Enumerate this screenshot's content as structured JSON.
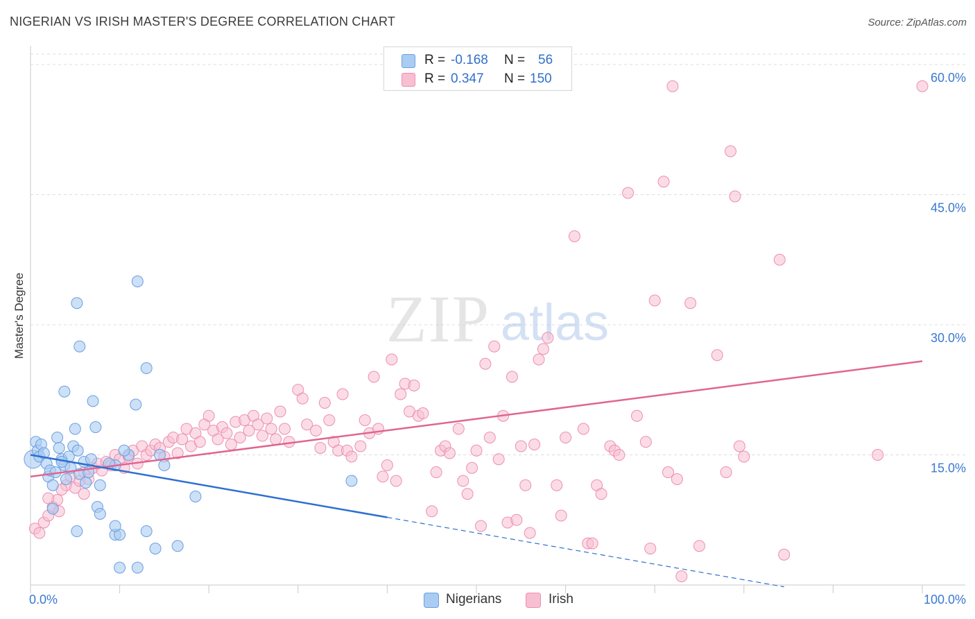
{
  "title": "NIGERIAN VS IRISH MASTER'S DEGREE CORRELATION CHART",
  "source": "Source: ZipAtlas.com",
  "watermark": {
    "zip": "ZIP",
    "atlas": "atlas"
  },
  "legend_top": {
    "rows": [
      {
        "r_label": "R =",
        "r_value": "-0.168",
        "n_label": "N =",
        "n_value": "56"
      },
      {
        "r_label": "R =",
        "r_value": "0.347",
        "n_label": "N =",
        "n_value": "150"
      }
    ]
  },
  "legend_bottom": {
    "items": [
      "Nigerians",
      "Irish"
    ]
  },
  "colors": {
    "nigerian_fill": "#aaccf2",
    "nigerian_stroke": "#6a9fe0",
    "nigerian_line": "#2d6fd0",
    "irish_fill": "#f7bfd1",
    "irish_stroke": "#ec8fb0",
    "irish_line": "#e06592",
    "tick_label": "#3a78d0",
    "grid": "#dcdcdc"
  },
  "chart_data": {
    "type": "scatter",
    "title": "NIGERIAN VS IRISH MASTER'S DEGREE CORRELATION CHART",
    "xlabel": "",
    "ylabel": "Master's Degree",
    "xlim": [
      0,
      100
    ],
    "ylim": [
      0,
      62
    ],
    "x_tick_labels": [
      "0.0%",
      "100.0%"
    ],
    "y_ticks": [
      15,
      30,
      45,
      60
    ],
    "y_tick_labels": [
      "15.0%",
      "30.0%",
      "45.0%",
      "60.0%"
    ],
    "grid": "horizontal dashed",
    "legend_position": "top-center",
    "series": [
      {
        "name": "Nigerians",
        "r": -0.168,
        "n": 56,
        "trend": {
          "x0": 0,
          "y0": 15.0,
          "x1": 40,
          "y1": 7.8,
          "dashed_to_x": 100,
          "dashed_to_y": -3.2
        },
        "points": [
          [
            0.3,
            14.5
          ],
          [
            0.6,
            16.5
          ],
          [
            0.8,
            15.5
          ],
          [
            1.0,
            14.8
          ],
          [
            1.2,
            16.2
          ],
          [
            1.5,
            15.2
          ],
          [
            1.8,
            14.0
          ],
          [
            2.0,
            12.5
          ],
          [
            2.2,
            13.2
          ],
          [
            2.5,
            11.5
          ],
          [
            2.8,
            13.0
          ],
          [
            3.0,
            17.0
          ],
          [
            3.2,
            15.8
          ],
          [
            3.5,
            14.5
          ],
          [
            3.8,
            13.8
          ],
          [
            4.0,
            12.2
          ],
          [
            4.3,
            14.8
          ],
          [
            4.5,
            13.5
          ],
          [
            4.8,
            16.0
          ],
          [
            5.0,
            18.0
          ],
          [
            5.3,
            15.5
          ],
          [
            5.5,
            12.8
          ],
          [
            6.0,
            14.2
          ],
          [
            6.2,
            11.8
          ],
          [
            6.5,
            13.0
          ],
          [
            6.8,
            14.5
          ],
          [
            7.0,
            21.2
          ],
          [
            7.3,
            18.2
          ],
          [
            7.5,
            9.0
          ],
          [
            7.8,
            8.2
          ],
          [
            3.8,
            22.3
          ],
          [
            5.2,
            6.2
          ],
          [
            7.8,
            11.5
          ],
          [
            9.5,
            5.8
          ],
          [
            10.0,
            5.8
          ],
          [
            9.5,
            13.8
          ],
          [
            12.0,
            35.0
          ],
          [
            5.2,
            32.5
          ],
          [
            5.5,
            27.5
          ],
          [
            11.0,
            15.0
          ],
          [
            11.8,
            20.8
          ],
          [
            10.5,
            15.5
          ],
          [
            13.0,
            25.0
          ],
          [
            13.0,
            6.2
          ],
          [
            15.0,
            13.8
          ],
          [
            14.5,
            15.0
          ],
          [
            16.5,
            4.5
          ],
          [
            14.0,
            4.2
          ],
          [
            12.0,
            2.0
          ],
          [
            10.0,
            2.0
          ],
          [
            18.5,
            10.2
          ],
          [
            36.0,
            12.0
          ],
          [
            9.5,
            6.8
          ],
          [
            8.8,
            14.0
          ],
          [
            2.5,
            8.8
          ],
          [
            3.5,
            14.2
          ]
        ]
      },
      {
        "name": "Irish",
        "r": 0.347,
        "n": 150,
        "trend": {
          "x0": 0,
          "y0": 12.5,
          "x1": 100,
          "y1": 25.8
        },
        "points": [
          [
            0.5,
            6.5
          ],
          [
            1.5,
            7.2
          ],
          [
            2.0,
            8.0
          ],
          [
            2.5,
            9.0
          ],
          [
            3.0,
            9.8
          ],
          [
            3.2,
            8.5
          ],
          [
            4.0,
            11.5
          ],
          [
            4.5,
            12.5
          ],
          [
            5.0,
            11.2
          ],
          [
            5.5,
            12.0
          ],
          [
            6.0,
            13.0
          ],
          [
            6.5,
            12.2
          ],
          [
            7.0,
            13.5
          ],
          [
            7.5,
            14.0
          ],
          [
            8.0,
            13.2
          ],
          [
            8.5,
            14.2
          ],
          [
            9.0,
            13.8
          ],
          [
            9.5,
            15.0
          ],
          [
            10.0,
            14.5
          ],
          [
            10.5,
            13.5
          ],
          [
            11.0,
            14.8
          ],
          [
            11.5,
            15.5
          ],
          [
            12.0,
            14.0
          ],
          [
            12.5,
            16.0
          ],
          [
            13.0,
            15.0
          ],
          [
            13.5,
            15.5
          ],
          [
            14.0,
            16.2
          ],
          [
            14.5,
            15.8
          ],
          [
            15.0,
            14.8
          ],
          [
            15.5,
            16.5
          ],
          [
            16.0,
            17.0
          ],
          [
            16.5,
            15.2
          ],
          [
            17.0,
            16.8
          ],
          [
            17.5,
            18.0
          ],
          [
            18.0,
            16.0
          ],
          [
            18.5,
            17.5
          ],
          [
            19.0,
            16.5
          ],
          [
            19.5,
            18.5
          ],
          [
            20.0,
            19.5
          ],
          [
            20.5,
            17.8
          ],
          [
            21.0,
            16.8
          ],
          [
            21.5,
            18.2
          ],
          [
            22.0,
            17.5
          ],
          [
            22.5,
            16.2
          ],
          [
            23.0,
            18.8
          ],
          [
            23.5,
            17.0
          ],
          [
            24.0,
            19.0
          ],
          [
            24.5,
            17.8
          ],
          [
            25.0,
            19.5
          ],
          [
            25.5,
            18.5
          ],
          [
            26.0,
            17.2
          ],
          [
            26.5,
            19.2
          ],
          [
            27.0,
            18.0
          ],
          [
            27.5,
            16.8
          ],
          [
            28.0,
            20.0
          ],
          [
            28.5,
            18.0
          ],
          [
            29.0,
            16.5
          ],
          [
            30.0,
            22.5
          ],
          [
            30.5,
            21.5
          ],
          [
            31.0,
            18.5
          ],
          [
            32.0,
            17.8
          ],
          [
            32.5,
            15.8
          ],
          [
            33.0,
            21.0
          ],
          [
            33.5,
            19.0
          ],
          [
            34.0,
            16.5
          ],
          [
            34.5,
            15.5
          ],
          [
            35.0,
            22.0
          ],
          [
            35.5,
            15.5
          ],
          [
            36.0,
            14.8
          ],
          [
            37.0,
            16.0
          ],
          [
            37.5,
            19.0
          ],
          [
            38.0,
            17.5
          ],
          [
            38.5,
            24.0
          ],
          [
            39.0,
            18.0
          ],
          [
            39.5,
            12.5
          ],
          [
            40.0,
            13.8
          ],
          [
            40.5,
            26.0
          ],
          [
            41.0,
            12.0
          ],
          [
            41.5,
            22.0
          ],
          [
            42.0,
            23.2
          ],
          [
            42.5,
            20.0
          ],
          [
            43.0,
            23.0
          ],
          [
            43.5,
            19.5
          ],
          [
            44.0,
            19.8
          ],
          [
            45.0,
            8.5
          ],
          [
            45.5,
            13.0
          ],
          [
            46.0,
            15.5
          ],
          [
            46.5,
            16.0
          ],
          [
            47.0,
            15.2
          ],
          [
            48.0,
            18.0
          ],
          [
            48.5,
            12.0
          ],
          [
            49.0,
            10.5
          ],
          [
            49.5,
            13.5
          ],
          [
            50.0,
            15.5
          ],
          [
            50.5,
            6.8
          ],
          [
            51.0,
            25.5
          ],
          [
            51.5,
            17.0
          ],
          [
            52.0,
            27.5
          ],
          [
            52.5,
            14.5
          ],
          [
            53.0,
            19.5
          ],
          [
            53.5,
            7.2
          ],
          [
            54.0,
            24.0
          ],
          [
            54.5,
            7.5
          ],
          [
            55.0,
            16.0
          ],
          [
            55.5,
            11.5
          ],
          [
            56.0,
            6.0
          ],
          [
            56.5,
            16.2
          ],
          [
            57.0,
            26.0
          ],
          [
            57.5,
            27.2
          ],
          [
            58.0,
            28.5
          ],
          [
            59.0,
            11.5
          ],
          [
            59.5,
            8.0
          ],
          [
            60.0,
            17.0
          ],
          [
            61.0,
            40.2
          ],
          [
            62.0,
            18.0
          ],
          [
            62.5,
            4.8
          ],
          [
            63.0,
            4.8
          ],
          [
            63.5,
            11.5
          ],
          [
            64.0,
            10.5
          ],
          [
            65.0,
            16.0
          ],
          [
            65.5,
            15.5
          ],
          [
            66.0,
            15.0
          ],
          [
            67.0,
            45.2
          ],
          [
            68.0,
            19.5
          ],
          [
            69.0,
            16.5
          ],
          [
            69.5,
            4.2
          ],
          [
            70.0,
            32.8
          ],
          [
            71.0,
            46.5
          ],
          [
            71.5,
            13.0
          ],
          [
            72.0,
            57.5
          ],
          [
            72.5,
            12.2
          ],
          [
            73.0,
            1.0
          ],
          [
            74.0,
            32.5
          ],
          [
            75.0,
            4.5
          ],
          [
            77.0,
            26.5
          ],
          [
            78.0,
            13.0
          ],
          [
            78.5,
            50.0
          ],
          [
            79.0,
            44.8
          ],
          [
            79.5,
            16.0
          ],
          [
            80.0,
            14.8
          ],
          [
            84.0,
            37.5
          ],
          [
            84.5,
            3.5
          ],
          [
            95.0,
            15.0
          ],
          [
            100.0,
            57.5
          ],
          [
            1.0,
            6.0
          ],
          [
            2.0,
            10.0
          ],
          [
            3.5,
            11.0
          ],
          [
            6.0,
            10.5
          ]
        ]
      }
    ]
  }
}
